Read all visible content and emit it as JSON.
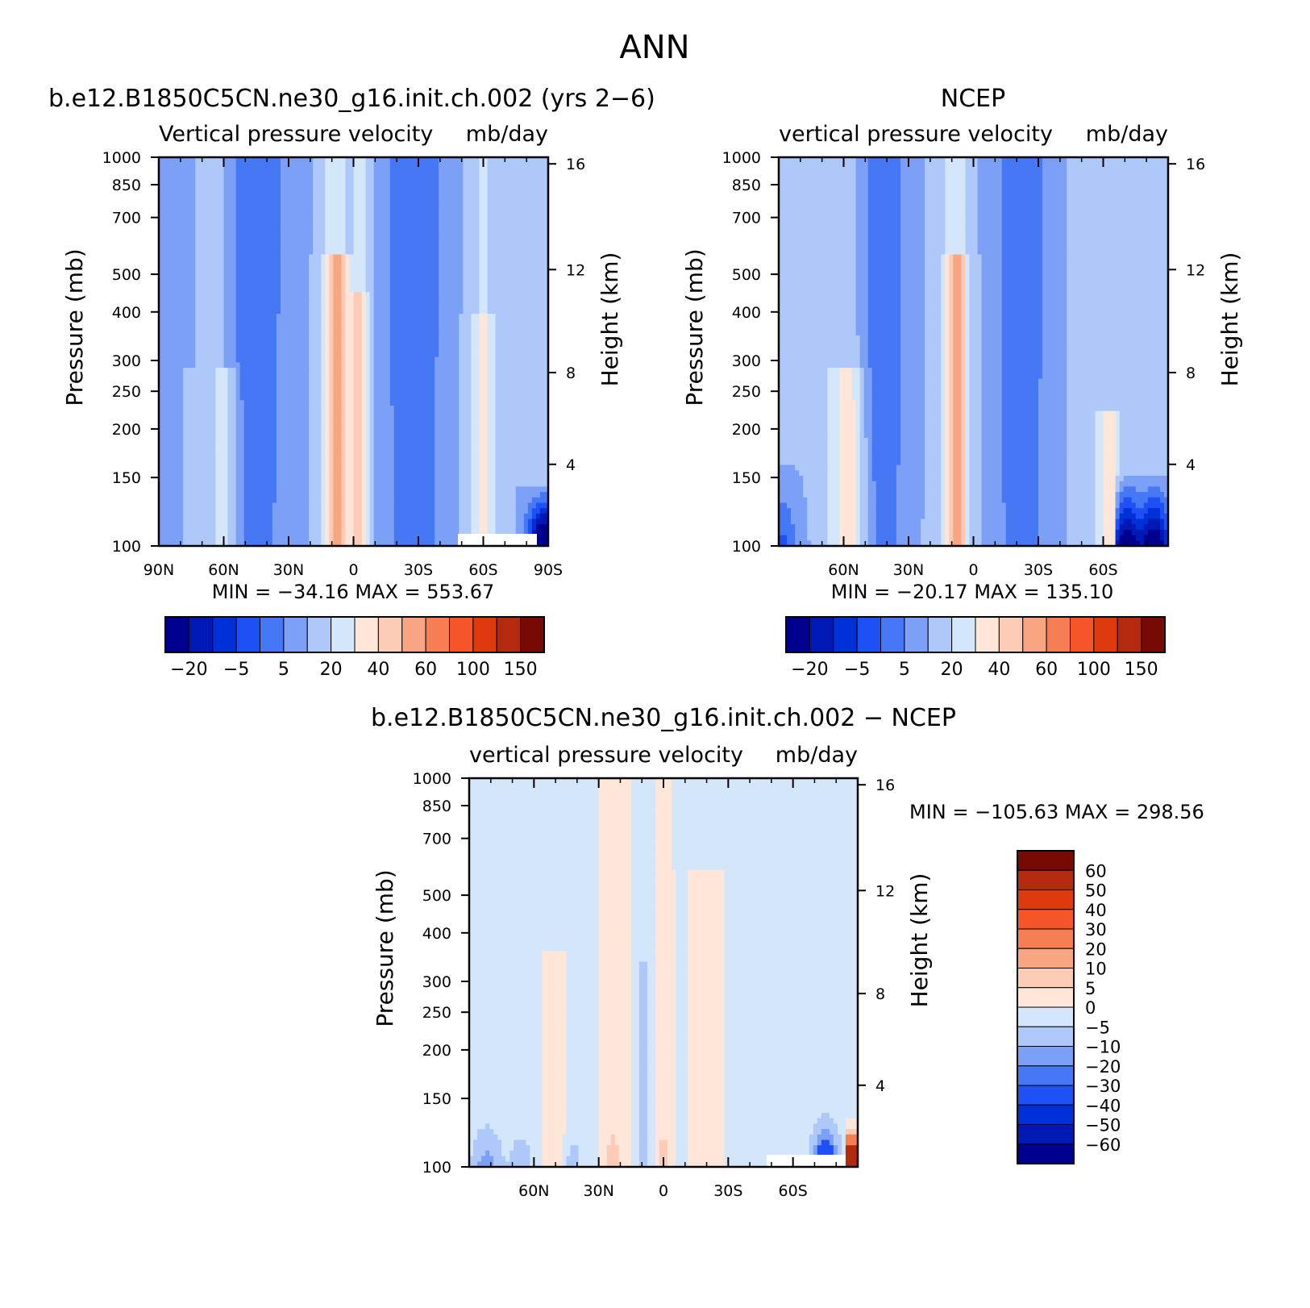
{
  "figure": {
    "title": "ANN"
  },
  "chart_data": [
    {
      "type": "heatmap",
      "title": "b.e12.B1850C5CN.ne30_g16.init.ch.002 (yrs 2−6)",
      "subtitle_left": "Vertical pressure velocity",
      "subtitle_right": "mb/day",
      "ylabel": "Pressure (mb)",
      "y2label": "Height (km)",
      "x_ticks": [
        "90N",
        "60N",
        "30N",
        "0",
        "30S",
        "60S",
        "90S"
      ],
      "y_ticks": [
        100,
        150,
        200,
        250,
        300,
        400,
        500,
        700,
        850,
        1000
      ],
      "y2_ticks": [
        16,
        12,
        8,
        4
      ],
      "ylim": [
        1000,
        100
      ],
      "xlim": [
        "90N",
        "90S"
      ],
      "y_scale": "log",
      "min": "−34.16",
      "max": "553.67",
      "min_label": "MIN",
      "max_label": "MAX",
      "colorbar_labels": [
        "−20",
        "−5",
        "5",
        "20",
        "40",
        "60",
        "100",
        "150"
      ],
      "colorbar_orientation": "horizontal"
    },
    {
      "type": "heatmap",
      "title": "NCEP",
      "subtitle_left": "vertical pressure velocity",
      "subtitle_right": "mb/day",
      "ylabel": "Pressure (mb)",
      "y2label": "Height (km)",
      "x_ticks": [
        "60N",
        "30N",
        "0",
        "30S",
        "60S"
      ],
      "y_ticks": [
        100,
        150,
        200,
        250,
        300,
        400,
        500,
        700,
        850,
        1000
      ],
      "y2_ticks": [
        16,
        12,
        8,
        4
      ],
      "ylim": [
        1000,
        100
      ],
      "y_scale": "log",
      "min": "−20.17",
      "max": "135.10",
      "min_label": "MIN",
      "max_label": "MAX",
      "colorbar_labels": [
        "−20",
        "−5",
        "5",
        "20",
        "40",
        "60",
        "100",
        "150"
      ],
      "colorbar_orientation": "horizontal"
    },
    {
      "type": "heatmap",
      "title": "b.e12.B1850C5CN.ne30_g16.init.ch.002 − NCEP",
      "subtitle_left": "vertical pressure velocity",
      "subtitle_right": "mb/day",
      "ylabel": "Pressure (mb)",
      "y2label": "Height (km)",
      "x_ticks": [
        "60N",
        "30N",
        "0",
        "30S",
        "60S"
      ],
      "y_ticks": [
        100,
        150,
        200,
        250,
        300,
        400,
        500,
        700,
        850,
        1000
      ],
      "y2_ticks": [
        16,
        12,
        8,
        4
      ],
      "ylim": [
        1000,
        100
      ],
      "y_scale": "log",
      "min": "−105.63",
      "max": "298.56",
      "min_label": "MIN",
      "max_label": "MAX",
      "colorbar_labels": [
        "60",
        "50",
        "40",
        "30",
        "20",
        "10",
        "5",
        "0",
        "−5",
        "−10",
        "−20",
        "−30",
        "−40",
        "−50",
        "−60"
      ],
      "colorbar_orientation": "vertical"
    }
  ],
  "colors": {
    "diverging_16": [
      "#00008f",
      "#0018b4",
      "#0030d8",
      "#1e50f5",
      "#4678f5",
      "#7ca0f5",
      "#aec8fa",
      "#d4e6fa",
      "#fde6d7",
      "#fbcbb5",
      "#f7a583",
      "#f77d52",
      "#f55528",
      "#de3a0e",
      "#b42a0e",
      "#780a05"
    ],
    "diff_16": [
      "#780a05",
      "#b42a0e",
      "#de3a0e",
      "#f55528",
      "#f77d52",
      "#f7a583",
      "#fbcbb5",
      "#fde6d7",
      "#d4e6fa",
      "#aec8fa",
      "#7ca0f5",
      "#4678f5",
      "#1e50f5",
      "#0030d8",
      "#0018b4",
      "#00008f"
    ]
  }
}
